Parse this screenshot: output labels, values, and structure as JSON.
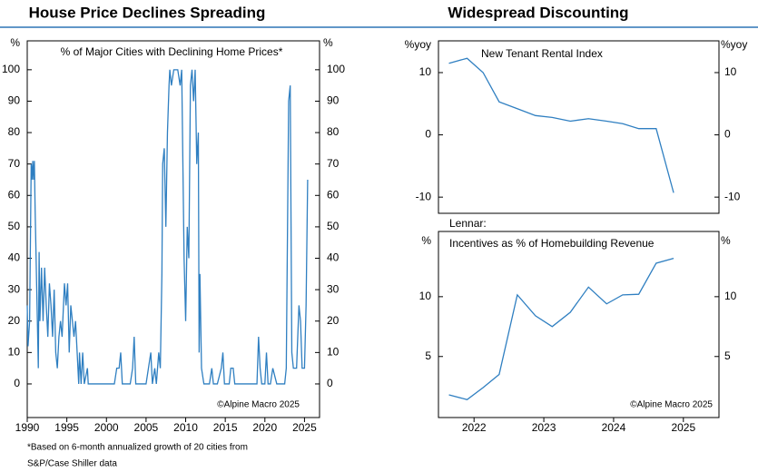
{
  "chart_data": [
    {
      "type": "line",
      "title": "House Price Declines Spreading",
      "subtitle": "% of Major Cities with Declining Home Prices*",
      "y_unit": "%",
      "source": "©Alpine Macro 2025",
      "footnote_lines": [
        "*Based on 6-month annualized growth of 20 cities from",
        "S&P/Case Shiller data"
      ],
      "color": "#2f7fc1",
      "x": [
        1990.0,
        1990.1,
        1990.3,
        1990.5,
        1990.6,
        1990.7,
        1990.8,
        1990.9,
        1991.0,
        1991.2,
        1991.4,
        1991.5,
        1991.6,
        1991.8,
        1992.0,
        1992.2,
        1992.4,
        1992.6,
        1992.8,
        1993.0,
        1993.2,
        1993.4,
        1993.6,
        1993.8,
        1994.0,
        1994.2,
        1994.4,
        1994.7,
        1994.9,
        1995.1,
        1995.3,
        1995.5,
        1995.7,
        1995.9,
        1996.1,
        1996.3,
        1996.5,
        1996.6,
        1996.8,
        1997.0,
        1997.2,
        1997.6,
        1997.7,
        2001.0,
        2001.3,
        2001.6,
        2001.8,
        2002.0,
        2003.0,
        2003.3,
        2003.5,
        2003.7,
        2005.0,
        2005.3,
        2005.6,
        2005.8,
        2006.1,
        2006.3,
        2006.6,
        2006.8,
        2007.0,
        2007.1,
        2007.3,
        2007.5,
        2007.7,
        2007.9,
        2008.0,
        2008.2,
        2008.5,
        2009.0,
        2009.3,
        2009.5,
        2009.8,
        2010.0,
        2010.2,
        2010.4,
        2010.6,
        2010.8,
        2011.0,
        2011.2,
        2011.4,
        2011.6,
        2011.7,
        2011.8,
        2012.0,
        2012.3,
        2013.0,
        2013.3,
        2013.5,
        2014.0,
        2014.5,
        2014.7,
        2014.9,
        2015.5,
        2015.7,
        2016.0,
        2016.2,
        2019.0,
        2019.2,
        2019.4,
        2019.6,
        2020.0,
        2020.2,
        2020.4,
        2020.7,
        2021.0,
        2021.5,
        2022.5,
        2022.7,
        2023.0,
        2023.2,
        2023.4,
        2023.6,
        2024.0,
        2024.3,
        2024.5,
        2024.7,
        2025.0,
        2025.2,
        2025.4
      ],
      "values": [
        25,
        12,
        20,
        70,
        65,
        71,
        65,
        71,
        55,
        30,
        5,
        42,
        20,
        37,
        20,
        37,
        25,
        15,
        32,
        25,
        15,
        30,
        10,
        5,
        15,
        20,
        15,
        32,
        25,
        32,
        10,
        25,
        20,
        15,
        20,
        10,
        0,
        10,
        0,
        10,
        0,
        5,
        0,
        0,
        5,
        5,
        10,
        0,
        0,
        5,
        15,
        0,
        0,
        5,
        10,
        0,
        5,
        0,
        10,
        5,
        35,
        70,
        75,
        50,
        80,
        95,
        100,
        95,
        100,
        100,
        95,
        100,
        40,
        20,
        50,
        40,
        95,
        100,
        90,
        100,
        70,
        80,
        10,
        35,
        5,
        0,
        0,
        5,
        0,
        0,
        5,
        10,
        0,
        0,
        5,
        5,
        0,
        0,
        15,
        5,
        0,
        0,
        10,
        0,
        0,
        5,
        0,
        0,
        5,
        90,
        95,
        10,
        5,
        5,
        25,
        20,
        5,
        5,
        25,
        65
      ],
      "xlim": [
        1990,
        2026.9
      ],
      "xticks": [
        1990,
        1995,
        2000,
        2005,
        2010,
        2015,
        2020,
        2025
      ],
      "ylim": [
        -10.7,
        109.2
      ],
      "yticks": [
        0,
        10,
        20,
        30,
        40,
        50,
        60,
        70,
        80,
        90,
        100
      ]
    },
    {
      "type": "line",
      "title": "Widespread Discounting",
      "subtitle": "New Tenant Rental Index",
      "y_unit": "%yoy",
      "color": "#2f7fc1",
      "x": [
        2021.64,
        2021.9,
        2022.13,
        2022.36,
        2022.62,
        2022.88,
        2023.12,
        2023.38,
        2023.64,
        2023.9,
        2024.13,
        2024.36,
        2024.61,
        2024.86
      ],
      "values": [
        11.5,
        12.3,
        10,
        5.3,
        4.2,
        3.1,
        2.8,
        2.2,
        2.6,
        2.2,
        1.8,
        1.0,
        1.0,
        -9.3
      ],
      "xlim": [
        2021.49,
        2025.51
      ],
      "ylim": [
        -12.6,
        15.1
      ],
      "yticks": [
        -10,
        0,
        10
      ]
    },
    {
      "type": "line",
      "subtitle_lines": [
        "Lennar:",
        "Incentives as % of Homebuilding Revenue"
      ],
      "y_unit": "%",
      "source": "©Alpine Macro 2025",
      "color": "#2f7fc1",
      "x": [
        2021.64,
        2021.9,
        2022.13,
        2022.36,
        2022.62,
        2022.88,
        2023.12,
        2023.38,
        2023.64,
        2023.9,
        2024.13,
        2024.36,
        2024.61,
        2024.86
      ],
      "values": [
        1.8,
        1.4,
        2.4,
        3.5,
        10.15,
        8.4,
        7.5,
        8.7,
        10.8,
        9.4,
        10.15,
        10.2,
        12.8,
        13.2
      ],
      "xlim": [
        2021.49,
        2025.51
      ],
      "xticks": [
        2022,
        2023,
        2024,
        2025
      ],
      "ylim": [
        -0.1,
        15.45
      ],
      "yticks": [
        5,
        10
      ]
    }
  ]
}
